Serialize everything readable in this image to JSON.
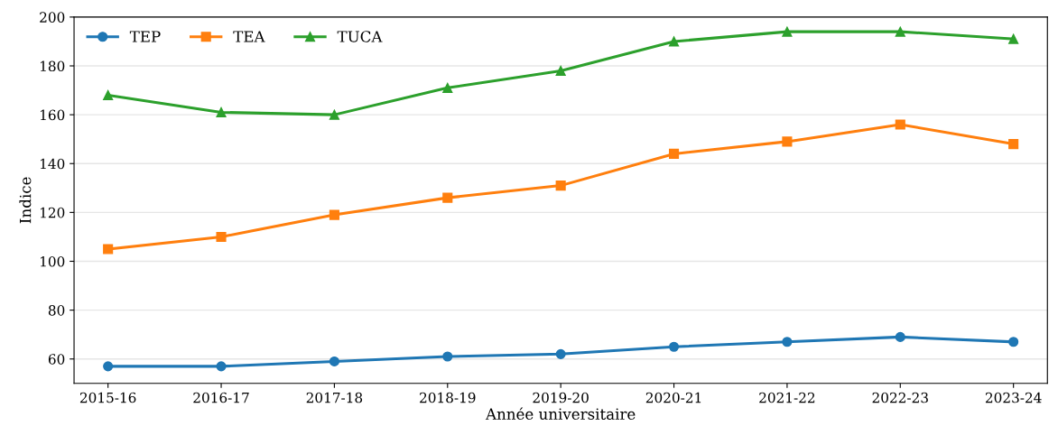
{
  "chart_data": {
    "type": "line",
    "xlabel": "Année universitaire",
    "ylabel": "Indice",
    "categories": [
      "2015-16",
      "2016-17",
      "2017-18",
      "2018-19",
      "2019-20",
      "2020-21",
      "2021-22",
      "2022-23",
      "2023-24"
    ],
    "series": [
      {
        "name": "TEP",
        "color": "#1f77b4",
        "marker": "circle",
        "values": [
          57,
          57,
          59,
          61,
          62,
          65,
          67,
          69,
          67
        ]
      },
      {
        "name": "TEA",
        "color": "#ff7f0e",
        "marker": "square",
        "values": [
          105,
          110,
          119,
          126,
          131,
          144,
          149,
          156,
          148
        ]
      },
      {
        "name": "TUCA",
        "color": "#2ca02c",
        "marker": "triangle",
        "values": [
          168,
          161,
          160,
          171,
          178,
          190,
          194,
          194,
          191
        ]
      }
    ],
    "ylim": [
      50,
      200
    ],
    "yticks": [
      60,
      80,
      100,
      120,
      140,
      160,
      180,
      200
    ],
    "grid": "y",
    "legend": "top left",
    "line_style": "solid"
  }
}
